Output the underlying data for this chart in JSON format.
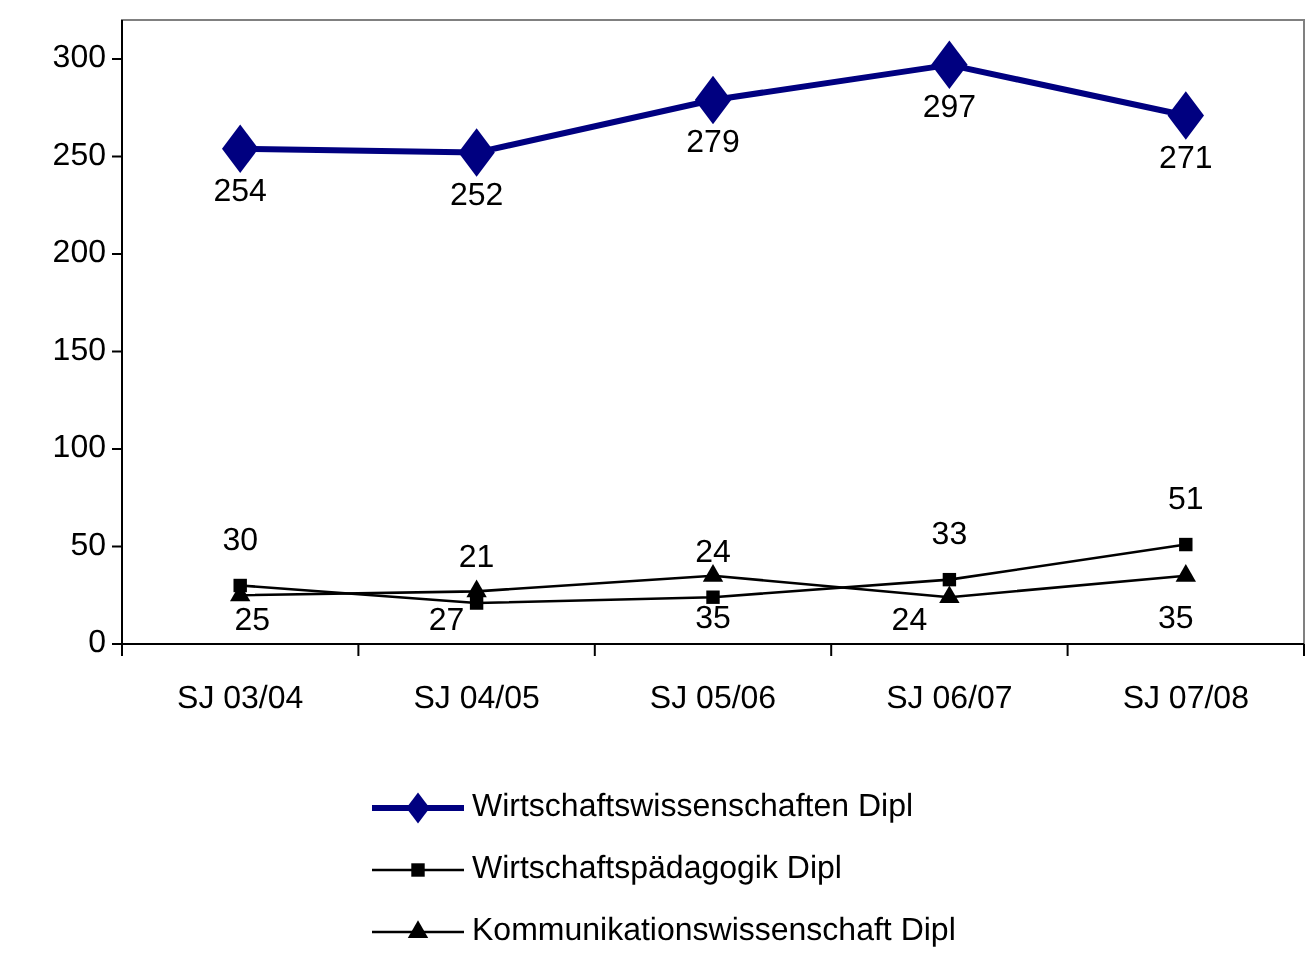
{
  "chart_data": {
    "type": "line",
    "categories": [
      "SJ 03/04",
      "SJ 04/05",
      "SJ 05/06",
      "SJ 06/07",
      "SJ 07/08"
    ],
    "series": [
      {
        "name": "Wirtschaftswissenschaften Dipl",
        "color": "#000080",
        "marker": "diamond",
        "values": [
          254,
          252,
          279,
          297,
          271
        ]
      },
      {
        "name": "Wirtschaftspädagogik Dipl",
        "color": "#000000",
        "marker": "square",
        "values": [
          30,
          21,
          24,
          33,
          51
        ]
      },
      {
        "name": "Kommunikationswissenschaft Dipl",
        "color": "#000000",
        "marker": "triangle",
        "values": [
          25,
          27,
          35,
          24,
          35
        ]
      }
    ],
    "ylim": [
      0,
      320
    ],
    "yticks": [
      0,
      50,
      100,
      150,
      200,
      250,
      300
    ],
    "grid": false,
    "legend": "bottom",
    "data_labels": true
  }
}
